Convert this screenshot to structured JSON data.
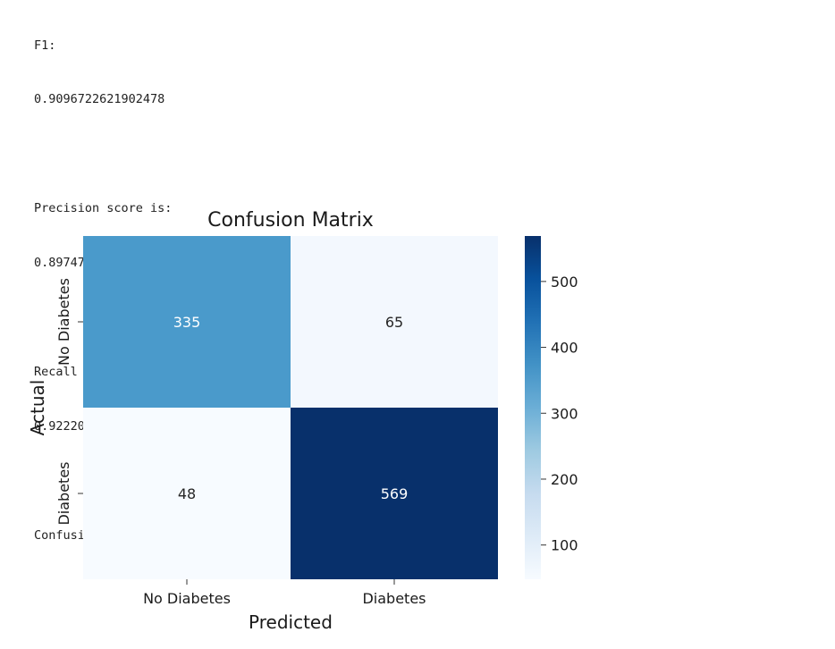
{
  "text_output": {
    "f1_label": "F1:",
    "f1_value": "0.9096722621902478",
    "precision_label": "Precision score is:",
    "precision_value": "0.8974763406940063",
    "recall_label": "Recall score is:",
    "recall_value": "0.9222042139384117",
    "confusion_label": "Confusion Matrix:"
  },
  "chart_data": {
    "type": "heatmap",
    "title": "Confusion Matrix",
    "xlabel": "Predicted",
    "ylabel": "Actual",
    "x_categories": [
      "No Diabetes",
      "Diabetes"
    ],
    "y_categories": [
      "No Diabetes",
      "Diabetes"
    ],
    "values": [
      [
        335,
        65
      ],
      [
        48,
        569
      ]
    ],
    "colormap": "Blues",
    "colorbar": {
      "range": [
        48,
        569
      ],
      "ticks": [
        100,
        200,
        300,
        400,
        500
      ]
    },
    "colors": {
      "335": "#4a9acb",
      "65": "#f3f8fe",
      "48": "#f7fbff",
      "569": "#08306b"
    }
  }
}
